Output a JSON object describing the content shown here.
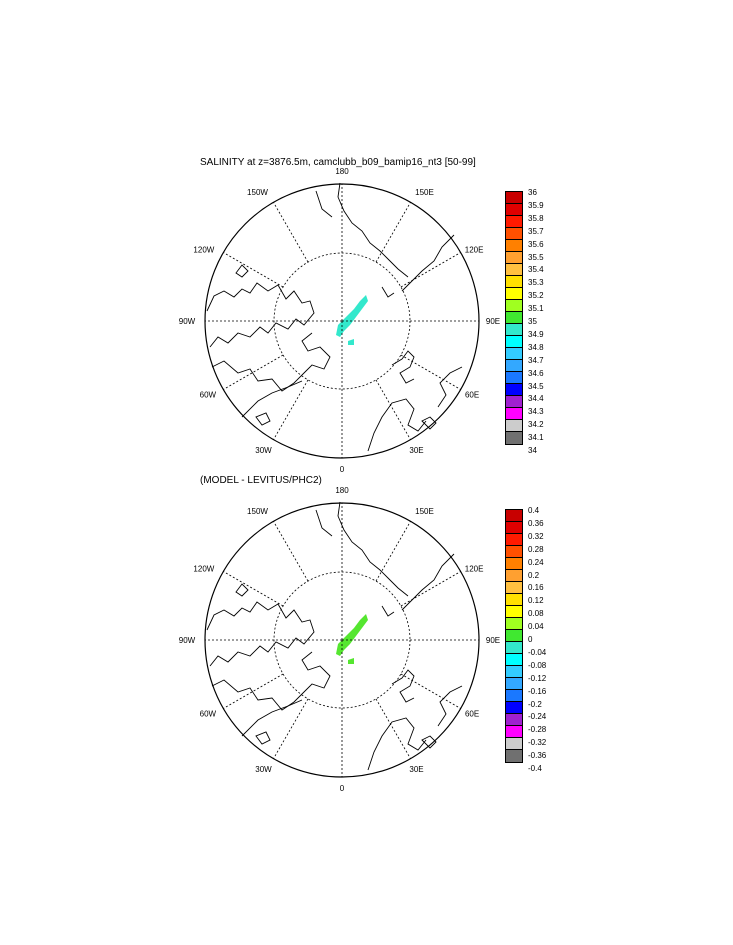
{
  "panels": [
    {
      "title": "SALINITY at z=3876.5m, camclubb_b09_bamip16_nt3 [50-99]",
      "lon_labels": [
        "180",
        "150E",
        "120E",
        "90E",
        "60E",
        "30E",
        "0",
        "30W",
        "60W",
        "90W",
        "120W",
        "150W"
      ],
      "field_color": "#33e8cc",
      "colorbar": {
        "labels": [
          "36",
          "35.9",
          "35.8",
          "35.7",
          "35.6",
          "35.5",
          "35.4",
          "35.3",
          "35.2",
          "35.1",
          "35",
          "34.9",
          "34.8",
          "34.7",
          "34.6",
          "34.5",
          "34.4",
          "34.3",
          "34.2",
          "34.1",
          "34"
        ],
        "colors": [
          "#c80000",
          "#e00000",
          "#ff1a00",
          "#ff5000",
          "#ff8000",
          "#ffa030",
          "#ffc040",
          "#ffe000",
          "#ffff00",
          "#a0ff20",
          "#40e830",
          "#33e8cc",
          "#00ffff",
          "#33ccff",
          "#33a8ff",
          "#1a78ff",
          "#0000ff",
          "#a020d0",
          "#ff00ff",
          "#cccccc",
          "#707070"
        ]
      }
    },
    {
      "title": "(MODEL - LEVITUS/PHC2)",
      "lon_labels": [
        "180",
        "150E",
        "120E",
        "90E",
        "60E",
        "30E",
        "0",
        "30W",
        "60W",
        "90W",
        "120W",
        "150W"
      ],
      "field_color": "#55e630",
      "colorbar": {
        "labels": [
          "0.4",
          "0.36",
          "0.32",
          "0.28",
          "0.24",
          "0.2",
          "0.16",
          "0.12",
          "0.08",
          "0.04",
          "0",
          "-0.04",
          "-0.08",
          "-0.12",
          "-0.16",
          "-0.2",
          "-0.24",
          "-0.28",
          "-0.32",
          "-0.36",
          "-0.4"
        ],
        "colors": [
          "#c80000",
          "#e00000",
          "#ff1a00",
          "#ff5000",
          "#ff8000",
          "#ffa030",
          "#ffc040",
          "#ffe000",
          "#ffff00",
          "#a0ff20",
          "#40e830",
          "#33e8cc",
          "#00ffff",
          "#33ccff",
          "#33a8ff",
          "#1a78ff",
          "#0000ff",
          "#a020d0",
          "#ff00ff",
          "#cccccc",
          "#707070"
        ]
      }
    }
  ]
}
